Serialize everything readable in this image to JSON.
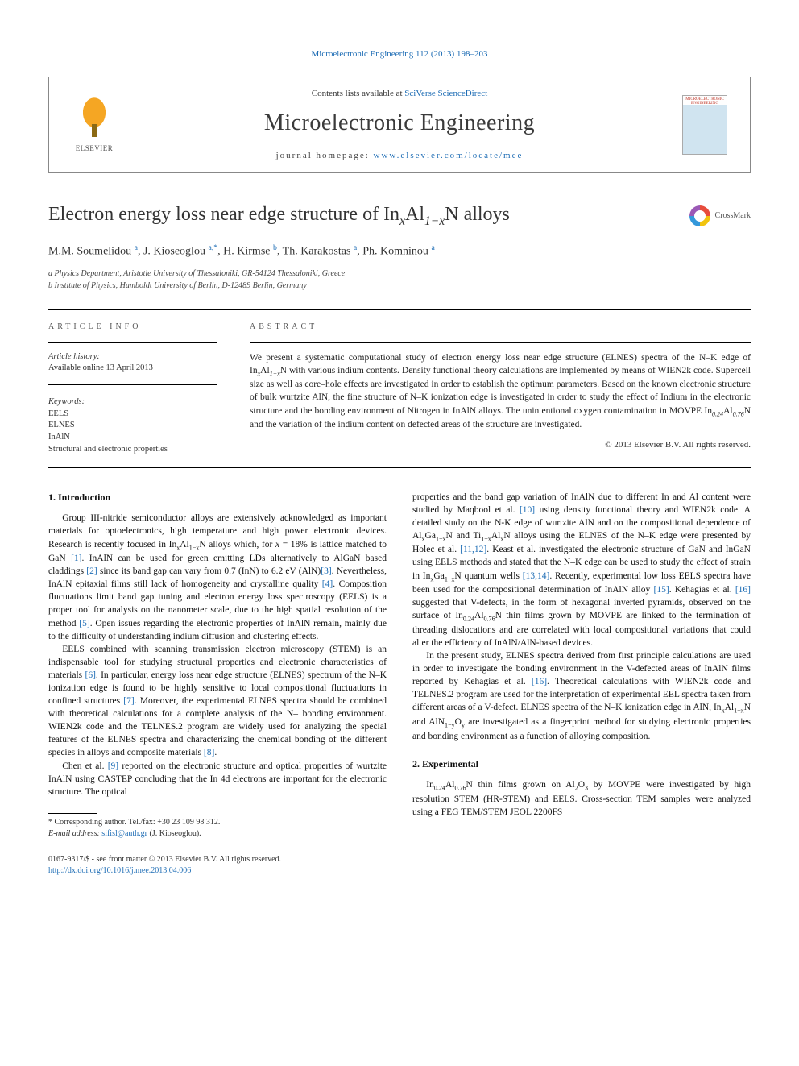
{
  "top_citation": {
    "text": "Microelectronic Engineering 112 (2013) 198–203",
    "href": "#"
  },
  "masthead": {
    "contents_prefix": "Contents lists available at ",
    "contents_link": "SciVerse ScienceDirect",
    "journal": "Microelectronic Engineering",
    "homepage_prefix": "journal homepage: ",
    "homepage_link": "www.elsevier.com/locate/mee",
    "publisher_label": "ELSEVIER",
    "cover_label": "MICROELECTRONIC ENGINEERING"
  },
  "article": {
    "title_html": "Electron energy loss near edge structure of In<sub>x</sub>Al<sub>1−x</sub>N alloys",
    "crossmark": "CrossMark"
  },
  "authors": {
    "list_html": "M.M. Soumelidou <sup>a</sup>, J. Kioseoglou <sup>a,</sup><sup>*</sup>, H. Kirmse <sup>b</sup>, Th. Karakostas <sup>a</sup>, Ph. Komninou <sup>a</sup>",
    "affiliations": [
      "a Physics Department, Aristotle University of Thessaloniki, GR-54124 Thessaloniki, Greece",
      "b Institute of Physics, Humboldt University of Berlin, D-12489 Berlin, Germany"
    ]
  },
  "info": {
    "section_label": "article info",
    "history_label": "Article history:",
    "history": "Available online 13 April 2013",
    "keywords_label": "Keywords:",
    "keywords": [
      "EELS",
      "ELNES",
      "InAlN",
      "Structural and electronic properties"
    ]
  },
  "abstract": {
    "section_label": "abstract",
    "text_html": "We present a systematic computational study of electron energy loss near edge structure (ELNES) spectra of the N–K edge of In<sub>x</sub>Al<sub>1−x</sub>N with various indium contents. Density functional theory calculations are implemented by means of WIEN2k code. Supercell size as well as core–hole effects are investigated in order to establish the optimum parameters. Based on the known electronic structure of bulk wurtzite AlN, the fine structure of N–K ionization edge is investigated in order to study the effect of Indium in the electronic structure and the bonding environment of Nitrogen in InAlN alloys. The unintentional oxygen contamination in MOVPE In<sub>0.24</sub>Al<sub>0.76</sub>N and the variation of the indium content on defected areas of the structure are investigated.",
    "copyright": "© 2013 Elsevier B.V. All rights reserved."
  },
  "sections": {
    "intro_heading": "1. Introduction",
    "exp_heading": "2. Experimental",
    "p1_html": "Group III-nitride semiconductor alloys are extensively acknowledged as important materials for optoelectronics, high temperature and high power electronic devices. Research is recently focused in In<sub>x</sub>Al<sub>1−x</sub>N alloys which, for <i>x</i> = 18% is lattice matched to GaN <a href='#'>[1]</a>. InAlN can be used for green emitting LDs alternatively to AlGaN based claddings <a href='#'>[2]</a> since its band gap can vary from 0.7 (InN) to 6.2 eV (AlN)<a href='#'>[3]</a>. Nevertheless, InAlN epitaxial films still lack of homogeneity and crystalline quality <a href='#'>[4]</a>. Composition fluctuations limit band gap tuning and electron energy loss spectroscopy (EELS) is a proper tool for analysis on the nanometer scale, due to the high spatial resolution of the method <a href='#'>[5]</a>. Open issues regarding the electronic properties of InAlN remain, mainly due to the difficulty of understanding indium diffusion and clustering effects.",
    "p2_html": "EELS combined with scanning transmission electron microscopy (STEM) is an indispensable tool for studying structural properties and electronic characteristics of materials <a href='#'>[6]</a>. In particular, energy loss near edge structure (ELNES) spectrum of the N–K ionization edge is found to be highly sensitive to local compositional fluctuations in confined structures <a href='#'>[7]</a>. Moreover, the experimental ELNES spectra should be combined with theoretical calculations for a complete analysis of the N– bonding environment. WIEN2k code and the TELNES.2 program are widely used for analyzing the special features of the ELNES spectra and characterizing the chemical bonding of the different species in alloys and composite materials <a href='#'>[8]</a>.",
    "p3_html": "Chen et al. <a href='#'>[9]</a> reported on the electronic structure and optical properties of wurtzite InAlN using CASTEP concluding that the In 4d electrons are important for the electronic structure. The optical",
    "p4_html": "properties and the band gap variation of InAlN due to different In and Al content were studied by Maqbool et al. <a href='#'>[10]</a> using density functional theory and WIEN2k code. A detailed study on the N-K edge of wurtzite AlN and on the compositional dependence of Al<sub>x</sub>Ga<sub>1−x</sub>N and Ti<sub>1−x</sub>Al<sub>x</sub>N alloys using the ELNES of the N–K edge were presented by Holec et al. <a href='#'>[11,12]</a>. Keast et al. investigated the electronic structure of GaN and InGaN using EELS methods and stated that the N–K edge can be used to study the effect of strain in In<sub>x</sub>Ga<sub>1−x</sub>N quantum wells <a href='#'>[13,14]</a>. Recently, experimental low loss EELS spectra have been used for the compositional determination of InAlN alloy <a href='#'>[15]</a>. Kehagias et al. <a href='#'>[16]</a> suggested that V-defects, in the form of hexagonal inverted pyramids, observed on the surface of In<sub>0.24</sub>Al<sub>0.76</sub>N thin films grown by MOVPE are linked to the termination of threading dislocations and are correlated with local compositional variations that could alter the efficiency of InAlN/AlN-based devices.",
    "p5_html": "In the present study, ELNES spectra derived from first principle calculations are used in order to investigate the bonding environment in the V-defected areas of InAlN films reported by Kehagias et al. <a href='#'>[16]</a>. Theoretical calculations with WIEN2k code and TELNES.2 program are used for the interpretation of experimental EEL spectra taken from different areas of a V-defect. ELNES spectra of the N–K ionization edge in AlN, In<sub>x</sub>Al<sub>1−x</sub>N and AlN<sub>1−y</sub>O<sub>y</sub> are investigated as a fingerprint method for studying electronic properties and bonding environment as a function of alloying composition.",
    "exp_p1_html": "In<sub>0.24</sub>Al<sub>0.76</sub>N thin films grown on Al<sub>2</sub>O<sub>3</sub> by MOVPE were investigated by high resolution STEM (HR-STEM) and EELS. Cross-section TEM samples were analyzed using a FEG TEM/STEM JEOL 2200FS"
  },
  "footnotes": {
    "corr": "* Corresponding author. Tel./fax: +30 23 109 98 312.",
    "email_label": "E-mail address: ",
    "email": "sifisl@auth.gr",
    "email_who": " (J. Kioseoglou)."
  },
  "page_footer": {
    "line1": "0167-9317/$ - see front matter © 2013 Elsevier B.V. All rights reserved.",
    "doi": "http://dx.doi.org/10.1016/j.mee.2013.04.006"
  },
  "colors": {
    "link": "#1e6db5",
    "text": "#000000",
    "muted": "#555555"
  }
}
